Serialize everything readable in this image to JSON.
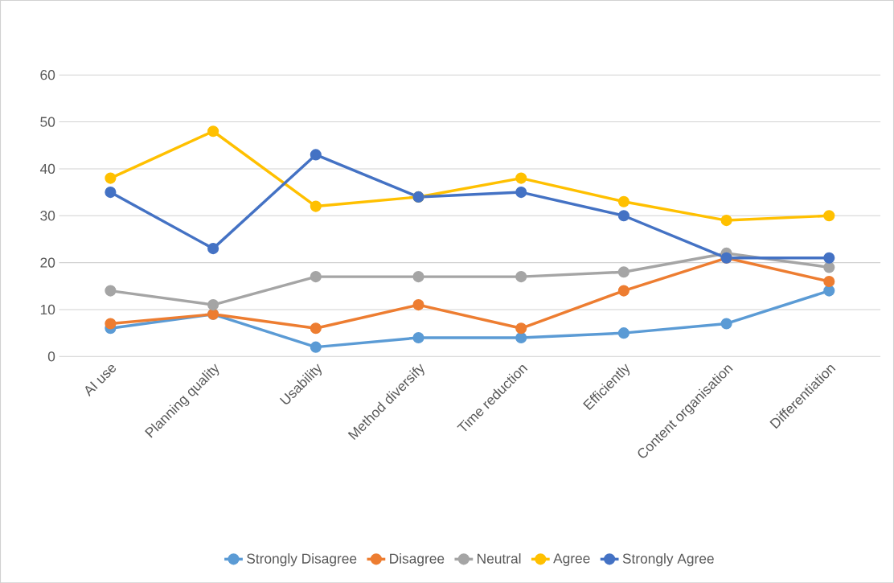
{
  "chart_data": {
    "type": "line",
    "categories": [
      "AI use",
      "Planning quality",
      "Usability",
      "Method diversify",
      "Time reduction",
      "Efficiently",
      "Content organisation",
      "Differentiation"
    ],
    "series": [
      {
        "name": "Strongly Disagree",
        "color": "#5b9bd5",
        "values": [
          6,
          9,
          2,
          4,
          4,
          5,
          7,
          14
        ]
      },
      {
        "name": "Disagree",
        "color": "#ed7d31",
        "values": [
          7,
          9,
          6,
          11,
          6,
          14,
          21,
          16
        ]
      },
      {
        "name": "Neutral",
        "color": "#a5a5a5",
        "values": [
          14,
          11,
          17,
          17,
          17,
          18,
          22,
          19
        ]
      },
      {
        "name": "Agree",
        "color": "#ffc000",
        "values": [
          38,
          48,
          32,
          34,
          38,
          33,
          29,
          30
        ]
      },
      {
        "name": "Strongly Agree",
        "color": "#4472c4",
        "values": [
          35,
          23,
          43,
          34,
          35,
          30,
          21,
          21
        ]
      }
    ],
    "ylim": [
      0,
      60
    ],
    "yticks": [
      0,
      10,
      20,
      30,
      40,
      50,
      60
    ],
    "grid": "y",
    "legend": "bottom",
    "marker": "circle",
    "line_style": "solid"
  }
}
